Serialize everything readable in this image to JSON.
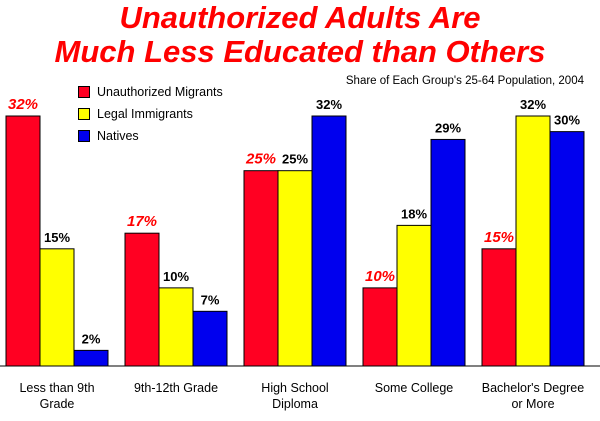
{
  "title_lines": [
    "Unauthorized Adults Are",
    "Much Less Educated than Others"
  ],
  "subtitle": "Share of Each Group's 25-64 Population, 2004",
  "colors": {
    "unauthorized": "#ff0022",
    "legal": "#ffff00",
    "natives": "#0000ee",
    "title": "#ff0000",
    "red_label": "#ff0000",
    "black_label": "#000000"
  },
  "chart_data": {
    "type": "bar",
    "categories": [
      [
        "Less than 9th",
        "Grade"
      ],
      [
        "9th-12th Grade"
      ],
      [
        "High School",
        "Diploma"
      ],
      [
        "Some College"
      ],
      [
        "Bachelor's Degree",
        "or More"
      ]
    ],
    "series": [
      {
        "name": "Unauthorized Migrants",
        "values": [
          32,
          17,
          25,
          10,
          15
        ],
        "labels": [
          "32%",
          "17%",
          "25%",
          "10%",
          "15%"
        ]
      },
      {
        "name": "Legal Immigrants",
        "values": [
          15,
          10,
          25,
          18,
          32
        ],
        "labels": [
          "15%",
          "10%",
          "25%",
          "18%",
          "32%"
        ]
      },
      {
        "name": "Natives",
        "values": [
          2,
          7,
          32,
          29,
          30
        ],
        "labels": [
          "2%",
          "7%",
          "32%",
          "29%",
          "30%"
        ]
      }
    ],
    "ylim": [
      0,
      32
    ],
    "grid": false,
    "legend_position": "top-left"
  }
}
